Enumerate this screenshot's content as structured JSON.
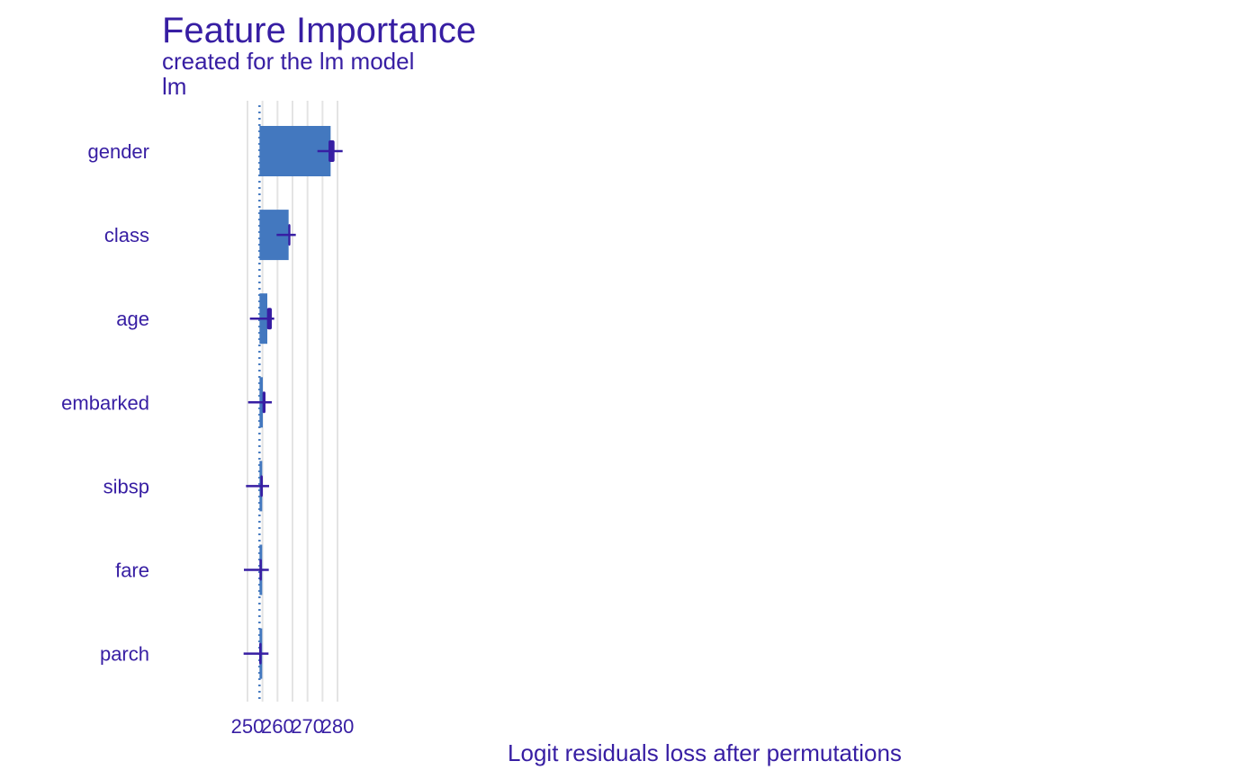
{
  "chart_data": {
    "type": "bar",
    "title": "Feature Importance",
    "subtitle": "created for the lm model",
    "model_label": "lm",
    "xlabel": "Logit residuals loss after permutations",
    "ylabel": "",
    "baseline": 254,
    "xlim": [
      248,
      282
    ],
    "x_ticks": [
      250,
      260,
      270,
      280
    ],
    "grid": "vertical",
    "legend": "none",
    "categories": [
      "gender",
      "class",
      "age",
      "embarked",
      "sibsp",
      "fare",
      "parch"
    ],
    "values": [
      277.7,
      263.7,
      256.6,
      255.1,
      254.3,
      254.1,
      254.0
    ],
    "boxplots": [
      {
        "min": 273.3,
        "q1": 277.0,
        "q3": 279.0,
        "max": 281.7
      },
      {
        "min": 259.7,
        "q1": 263.6,
        "q3": 264.3,
        "max": 266.1
      },
      {
        "min": 250.8,
        "q1": 256.5,
        "q3": 258.1,
        "max": 258.9
      },
      {
        "min": 250.2,
        "q1": 255.0,
        "q3": 256.0,
        "max": 258.1
      },
      {
        "min": 249.5,
        "q1": 254.3,
        "q3": 255.1,
        "max": 257.2
      },
      {
        "min": 248.8,
        "q1": 254.0,
        "q3": 254.8,
        "max": 257.1
      },
      {
        "min": 248.7,
        "q1": 253.9,
        "q3": 254.7,
        "max": 257.0
      }
    ],
    "colors": {
      "bar": "#4378bf",
      "box": "#371ea3",
      "text": "#371ea3",
      "grid": "#e4e4e4",
      "baseline": "#4378bf"
    }
  }
}
